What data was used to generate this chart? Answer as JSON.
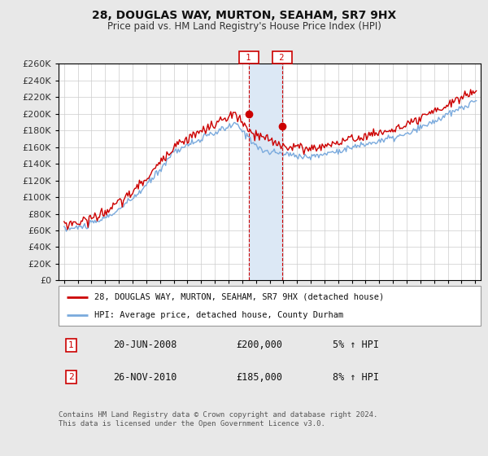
{
  "title": "28, DOUGLAS WAY, MURTON, SEAHAM, SR7 9HX",
  "subtitle": "Price paid vs. HM Land Registry's House Price Index (HPI)",
  "legend_line1": "28, DOUGLAS WAY, MURTON, SEAHAM, SR7 9HX (detached house)",
  "legend_line2": "HPI: Average price, detached house, County Durham",
  "annotation1_date": "20-JUN-2008",
  "annotation1_price": "£200,000",
  "annotation1_hpi": "5% ↑ HPI",
  "annotation1_year": 2008.47,
  "annotation1_value": 200000,
  "annotation2_date": "26-NOV-2010",
  "annotation2_price": "£185,000",
  "annotation2_hpi": "8% ↑ HPI",
  "annotation2_year": 2010.9,
  "annotation2_value": 185000,
  "footer": "Contains HM Land Registry data © Crown copyright and database right 2024.\nThis data is licensed under the Open Government Licence v3.0.",
  "ylim": [
    0,
    260000
  ],
  "ytick_step": 20000,
  "background_color": "#e8e8e8",
  "plot_background": "#ffffff",
  "grid_color": "#cccccc",
  "line1_color": "#cc0000",
  "line2_color": "#7aaadd",
  "anno_line_color": "#cc0000",
  "anno_box_color": "#cc0000",
  "shade_color": "#dce8f5"
}
